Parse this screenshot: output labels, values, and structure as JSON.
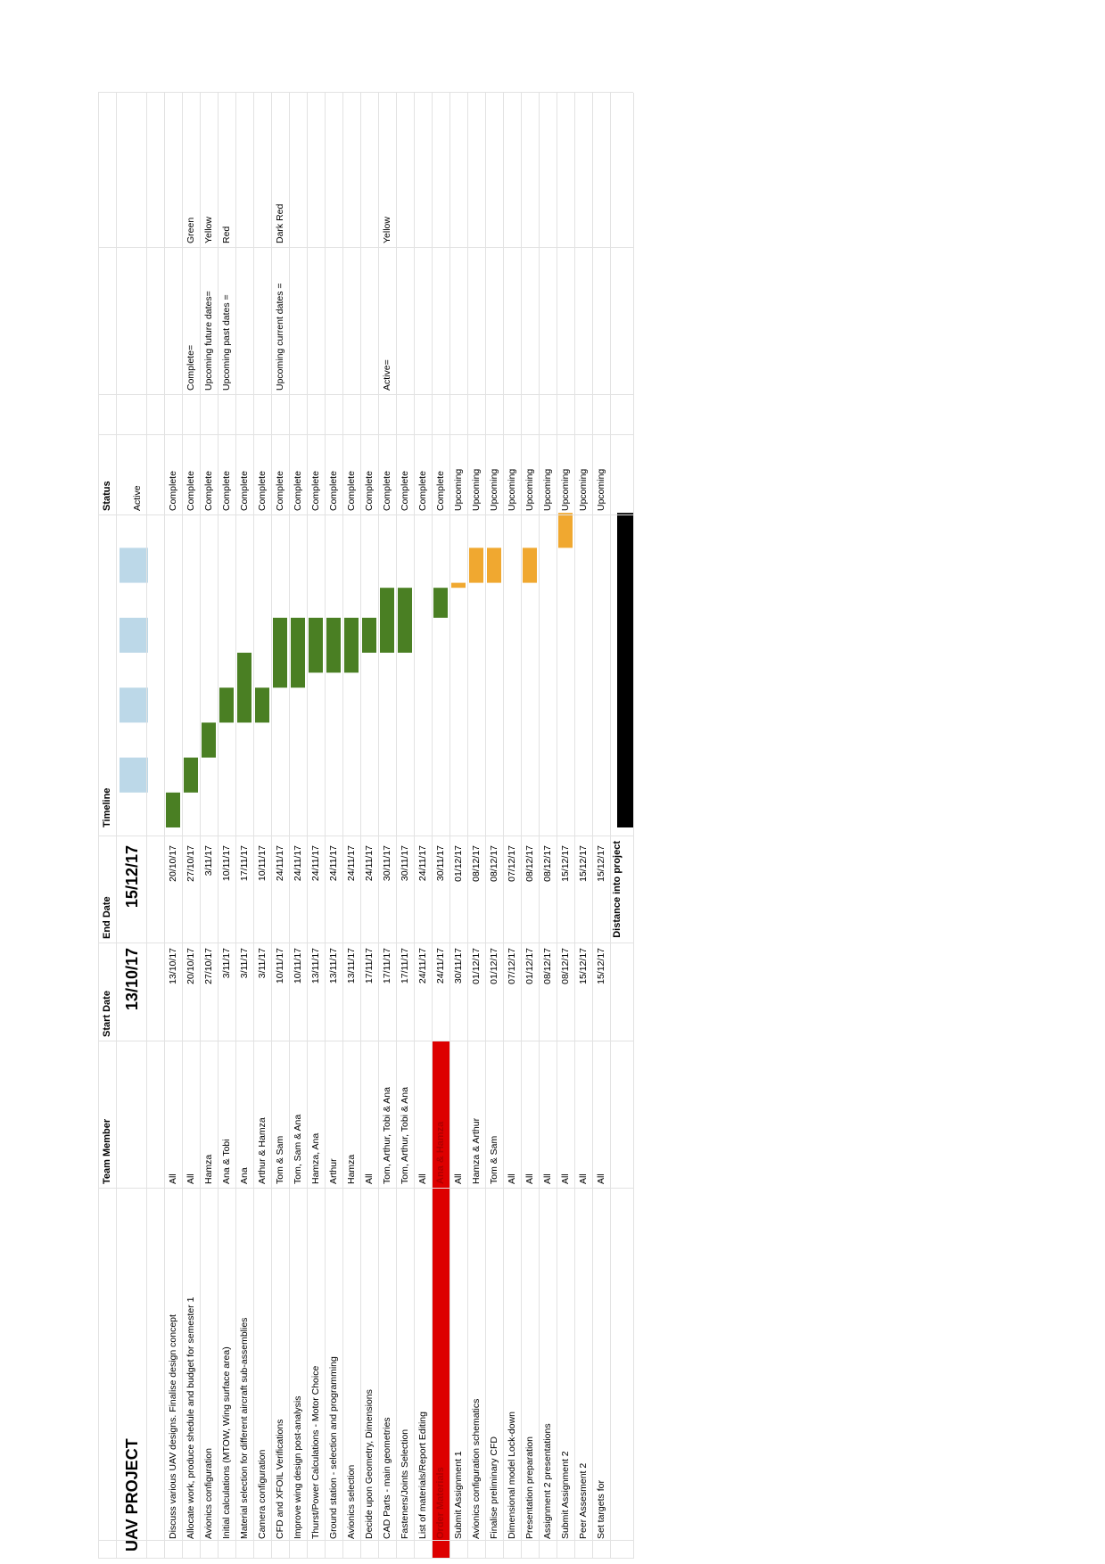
{
  "title": "UAV PROJECT",
  "headers": {
    "team_member": "Team Member",
    "start_date": "Start Date",
    "end_date": "End Date",
    "timeline": "Timeline",
    "status": "Status"
  },
  "project_start": "13/10/17",
  "project_end": "15/12/17",
  "distance_label": "Distance into project",
  "colors": {
    "complete": "#4a7f23",
    "upcoming": "#f0a830",
    "red": "#dd0000",
    "week_marker": "#bcd8e8",
    "distance": "#000000"
  },
  "legend": [
    {
      "label": "Complete=",
      "value": "Green"
    },
    {
      "label": "Upcoming future dates=",
      "value": "Yellow"
    },
    {
      "label": "Upcoming past dates =",
      "value": "Red"
    },
    {
      "label": "Upcoming current dates =",
      "value": "Dark Red"
    },
    {
      "label": "Active=",
      "value": "Yellow"
    }
  ],
  "chart_data": {
    "type": "gantt",
    "title": "UAV PROJECT",
    "tasks": [
      {
        "task": "Discuss various UAV designs. Finalise design concept",
        "member": "All",
        "start": "13/10/17",
        "end": "20/10/17",
        "status": "Complete"
      },
      {
        "task": "Allocate work, produce shedule and budget for semester 1",
        "member": "All",
        "start": "20/10/17",
        "end": "27/10/17",
        "status": "Complete"
      },
      {
        "task": "Avionics configuration",
        "member": "Hamza",
        "start": "27/10/17",
        "end": "3/11/17",
        "status": "Complete"
      },
      {
        "task": "Initial calculations  (MTOW, Wing surface area)",
        "member": "Ana & Tobi",
        "start": "3/11/17",
        "end": "10/11/17",
        "status": "Complete"
      },
      {
        "task": "Material selection for different aircraft sub-assemblies",
        "member": "Ana",
        "start": "3/11/17",
        "end": "17/11/17",
        "status": "Complete"
      },
      {
        "task": "Camera configuration",
        "member": "Arthur & Hamza",
        "start": "3/11/17",
        "end": "10/11/17",
        "status": "Complete"
      },
      {
        "task": "CFD and XFOIL Verifications",
        "member": "Tom & Sam",
        "start": "10/11/17",
        "end": "24/11/17",
        "status": "Complete"
      },
      {
        "task": "Improve wing design post-analysis",
        "member": "Tom, Sam & Ana",
        "start": "10/11/17",
        "end": "24/11/17",
        "status": "Complete"
      },
      {
        "task": "Thurst/Power Calculations - Motor Choice",
        "member": "Hamza, Ana",
        "start": "13/11/17",
        "end": "24/11/17",
        "status": "Complete"
      },
      {
        "task": "Ground station - selection and programming",
        "member": "Arthur",
        "start": "13/11/17",
        "end": "24/11/17",
        "status": "Complete"
      },
      {
        "task": "Avionics selection",
        "member": "Hamza",
        "start": "13/11/17",
        "end": "24/11/17",
        "status": "Complete"
      },
      {
        "task": "Decide upon Geometry, Dimensions",
        "member": "All",
        "start": "17/11/17",
        "end": "24/11/17",
        "status": "Complete"
      },
      {
        "task": "CAD Parts - main geometries",
        "member": "Tom, Arthur, Tobi & Ana",
        "start": "17/11/17",
        "end": "30/11/17",
        "status": "Complete"
      },
      {
        "task": "Fasteners/Joints Selection",
        "member": "Tom, Arthur, Tobi & Ana",
        "start": "17/11/17",
        "end": "30/11/17",
        "status": "Complete"
      },
      {
        "task": "List of materials/Report Editing",
        "member": "All",
        "start": "24/11/17",
        "end": "24/11/17",
        "status": "Complete"
      },
      {
        "task": "Order Materials",
        "member": "Ana & Hamza",
        "start": "24/11/17",
        "end": "30/11/17",
        "status": "Complete"
      },
      {
        "task": "Submit Assignment 1",
        "member": "All",
        "start": "30/11/17",
        "end": "01/12/17",
        "status": "Upcoming"
      },
      {
        "task": "Avionics configuration schematics",
        "member": "Hamza & Arthur",
        "start": "01/12/17",
        "end": "08/12/17",
        "status": "Upcoming"
      },
      {
        "task": "Finalise preliminary CFD",
        "member": "Tom & Sam",
        "start": "01/12/17",
        "end": "08/12/17",
        "status": "Upcoming"
      },
      {
        "task": "Dimensional model Lock-down",
        "member": "All",
        "start": "07/12/17",
        "end": "07/12/17",
        "status": "Upcoming"
      },
      {
        "task": "Presentation preparation",
        "member": "All",
        "start": "01/12/17",
        "end": "08/12/17",
        "status": "Upcoming"
      },
      {
        "task": "Assignment 2 presentations",
        "member": "All",
        "start": "08/12/17",
        "end": "08/12/17",
        "status": "Upcoming"
      },
      {
        "task": "Submit Assignment 2",
        "member": "All",
        "start": "08/12/17",
        "end": "15/12/17",
        "status": "Upcoming"
      },
      {
        "task": "Peer Assesment  2",
        "member": "All",
        "start": "15/12/17",
        "end": "15/12/17",
        "status": "Upcoming"
      },
      {
        "task": "Set targets for",
        "member": "All",
        "start": "15/12/17",
        "end": "15/12/17",
        "status": "Upcoming"
      }
    ],
    "active_row": {
      "start": "13/10/17",
      "end": "15/12/17",
      "status": "Active"
    },
    "distance_into_project_days": 63
  }
}
